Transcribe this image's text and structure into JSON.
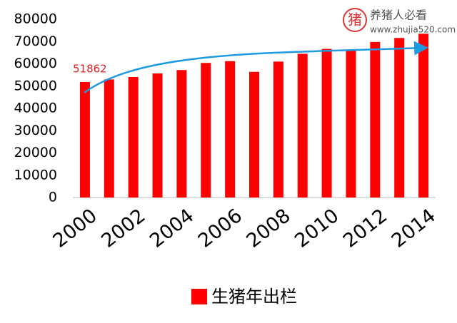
{
  "chart_data": {
    "type": "bar",
    "categories": [
      "2000",
      null,
      "2002",
      null,
      "2004",
      null,
      "2006",
      null,
      "2008",
      null,
      "2010",
      null,
      "2012",
      null,
      "2014"
    ],
    "values": [
      51862,
      53000,
      54100,
      55700,
      57200,
      60400,
      61200,
      56400,
      61000,
      64500,
      66700,
      66300,
      69800,
      71600,
      73500
    ],
    "series_name": "生猪年出栏",
    "color": "#ff0000",
    "ylim": [
      0,
      80000
    ],
    "yticks": [
      0,
      10000,
      20000,
      30000,
      40000,
      50000,
      60000,
      70000,
      80000
    ],
    "grid": false,
    "watermark": [
      "养猪人必看",
      "www.zhujia520.com"
    ]
  }
}
